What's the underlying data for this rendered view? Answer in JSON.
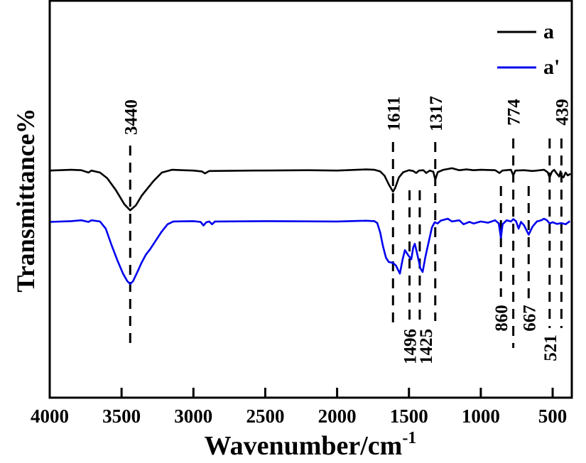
{
  "chart_data": {
    "type": "line",
    "title": "",
    "xlabel": "Wavenumber/cm",
    "xlabel_superscript": "-1",
    "ylabel": "Transmittance%",
    "xlim": [
      4000,
      370
    ],
    "ylim": [
      0,
      100
    ],
    "x_ticks": [
      4000,
      3500,
      3000,
      2500,
      2000,
      1500,
      1000,
      500
    ],
    "y_ticks_shown": false,
    "grid": false,
    "legend_position": "top-right",
    "series": [
      {
        "name": "a",
        "color": "#000000",
        "points": [
          [
            4000,
            57.1
          ],
          [
            3850,
            57.3
          ],
          [
            3780,
            57.2
          ],
          [
            3730,
            56.6
          ],
          [
            3710,
            57.1
          ],
          [
            3650,
            56.6
          ],
          [
            3600,
            55.2
          ],
          [
            3540,
            52.2
          ],
          [
            3480,
            48.6
          ],
          [
            3440,
            47.1
          ],
          [
            3400,
            48.4
          ],
          [
            3360,
            50.8
          ],
          [
            3320,
            52.6
          ],
          [
            3280,
            54.4
          ],
          [
            3220,
            56.6
          ],
          [
            3150,
            57.3
          ],
          [
            3000,
            57.1
          ],
          [
            2940,
            56.9
          ],
          [
            2920,
            56.4
          ],
          [
            2890,
            57.0
          ],
          [
            2600,
            57.1
          ],
          [
            2200,
            57.2
          ],
          [
            2000,
            57.1
          ],
          [
            1800,
            57.4
          ],
          [
            1740,
            57.3
          ],
          [
            1700,
            56.9
          ],
          [
            1670,
            55.8
          ],
          [
            1640,
            53.6
          ],
          [
            1611,
            51.8
          ],
          [
            1595,
            52.8
          ],
          [
            1570,
            55.4
          ],
          [
            1540,
            56.7
          ],
          [
            1500,
            57.2
          ],
          [
            1470,
            57.0
          ],
          [
            1450,
            56.5
          ],
          [
            1430,
            57.1
          ],
          [
            1400,
            57.2
          ],
          [
            1380,
            56.5
          ],
          [
            1355,
            57.1
          ],
          [
            1330,
            56.8
          ],
          [
            1317,
            54.8
          ],
          [
            1300,
            56.7
          ],
          [
            1260,
            57.3
          ],
          [
            1200,
            57.7
          ],
          [
            1150,
            57.2
          ],
          [
            1100,
            57.4
          ],
          [
            1050,
            57.2
          ],
          [
            1000,
            57.3
          ],
          [
            900,
            57.2
          ],
          [
            870,
            56.5
          ],
          [
            850,
            57.1
          ],
          [
            790,
            57.3
          ],
          [
            774,
            55.9
          ],
          [
            760,
            57.1
          ],
          [
            700,
            57.2
          ],
          [
            640,
            57.0
          ],
          [
            560,
            57.3
          ],
          [
            535,
            56.7
          ],
          [
            521,
            55.4
          ],
          [
            505,
            56.8
          ],
          [
            490,
            57.3
          ],
          [
            470,
            56.3
          ],
          [
            455,
            55.6
          ],
          [
            445,
            56.9
          ],
          [
            439,
            55.8
          ],
          [
            425,
            55.4
          ],
          [
            410,
            56.6
          ],
          [
            395,
            55.9
          ],
          [
            375,
            56.3
          ]
        ]
      },
      {
        "name": "a'",
        "color": "#0000ee",
        "points": [
          [
            4000,
            44.2
          ],
          [
            3850,
            44.4
          ],
          [
            3780,
            44.6
          ],
          [
            3730,
            44.2
          ],
          [
            3710,
            44.6
          ],
          [
            3650,
            44.3
          ],
          [
            3610,
            42.5
          ],
          [
            3570,
            38.4
          ],
          [
            3530,
            34.6
          ],
          [
            3490,
            31.2
          ],
          [
            3460,
            29.3
          ],
          [
            3440,
            28.6
          ],
          [
            3420,
            29.3
          ],
          [
            3390,
            31.6
          ],
          [
            3360,
            34.0
          ],
          [
            3330,
            36.0
          ],
          [
            3300,
            37.4
          ],
          [
            3260,
            39.6
          ],
          [
            3220,
            41.8
          ],
          [
            3180,
            43.6
          ],
          [
            3140,
            44.3
          ],
          [
            3000,
            44.4
          ],
          [
            2950,
            44.2
          ],
          [
            2930,
            43.3
          ],
          [
            2910,
            44.1
          ],
          [
            2890,
            44.3
          ],
          [
            2870,
            43.6
          ],
          [
            2850,
            44.3
          ],
          [
            2500,
            44.4
          ],
          [
            2000,
            44.3
          ],
          [
            1800,
            44.5
          ],
          [
            1740,
            44.4
          ],
          [
            1720,
            43.9
          ],
          [
            1700,
            41.5
          ],
          [
            1680,
            38.0
          ],
          [
            1660,
            35.2
          ],
          [
            1640,
            34.1
          ],
          [
            1611,
            33.9
          ],
          [
            1590,
            33.2
          ],
          [
            1563,
            31.2
          ],
          [
            1545,
            34.6
          ],
          [
            1528,
            37.1
          ],
          [
            1505,
            35.8
          ],
          [
            1484,
            34.8
          ],
          [
            1470,
            37.8
          ],
          [
            1459,
            38.7
          ],
          [
            1445,
            36.5
          ],
          [
            1420,
            32.5
          ],
          [
            1405,
            31.6
          ],
          [
            1385,
            35.5
          ],
          [
            1360,
            39.6
          ],
          [
            1340,
            42.8
          ],
          [
            1321,
            44.1
          ],
          [
            1300,
            43.8
          ],
          [
            1280,
            44.5
          ],
          [
            1230,
            45.0
          ],
          [
            1200,
            44.3
          ],
          [
            1150,
            44.6
          ],
          [
            1120,
            43.6
          ],
          [
            1080,
            44.2
          ],
          [
            1050,
            43.8
          ],
          [
            1000,
            44.3
          ],
          [
            950,
            44.0
          ],
          [
            900,
            44.6
          ],
          [
            875,
            43.8
          ],
          [
            860,
            40.2
          ],
          [
            848,
            43.6
          ],
          [
            820,
            44.6
          ],
          [
            790,
            44.3
          ],
          [
            774,
            44.9
          ],
          [
            755,
            44.4
          ],
          [
            737,
            42.5
          ],
          [
            720,
            44.2
          ],
          [
            700,
            43.4
          ],
          [
            667,
            41.0
          ],
          [
            640,
            43.0
          ],
          [
            610,
            44.3
          ],
          [
            580,
            44.6
          ],
          [
            560,
            45.0
          ],
          [
            540,
            44.6
          ],
          [
            521,
            43.8
          ],
          [
            500,
            44.1
          ],
          [
            470,
            43.7
          ],
          [
            439,
            43.9
          ],
          [
            410,
            43.6
          ],
          [
            380,
            44.4
          ]
        ]
      }
    ],
    "annotations": [
      {
        "label": "3440",
        "x": 3440,
        "side": "top"
      },
      {
        "label": "1611",
        "x": 1611,
        "side": "top"
      },
      {
        "label": "1317",
        "x": 1317,
        "side": "top"
      },
      {
        "label": "774",
        "x": 774,
        "side": "top"
      },
      {
        "label": "439",
        "x": 439,
        "side": "top"
      },
      {
        "label": "1496",
        "x": 1496,
        "side": "bottom"
      },
      {
        "label": "1425",
        "x": 1425,
        "side": "bottom"
      },
      {
        "label": "860",
        "x": 860,
        "side": "bottom"
      },
      {
        "label": "667",
        "x": 667,
        "side": "bottom"
      },
      {
        "label": "521",
        "x": 521,
        "side": "bottom"
      }
    ]
  }
}
